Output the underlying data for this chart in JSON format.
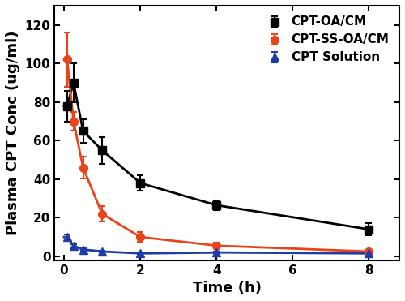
{
  "series": [
    {
      "label": "CPT-OA/CM",
      "color": "#000000",
      "marker": "s",
      "x": [
        0.083,
        0.25,
        0.5,
        1.0,
        2.0,
        4.0,
        8.0
      ],
      "y": [
        78.0,
        90.0,
        65.0,
        55.0,
        38.0,
        26.5,
        14.0
      ],
      "yerr": [
        8.0,
        10.0,
        6.0,
        7.0,
        4.0,
        2.5,
        3.0
      ]
    },
    {
      "label": "CPT-SS-OA/CM",
      "color": "#E8431A",
      "marker": "o",
      "x": [
        0.083,
        0.25,
        0.5,
        1.0,
        2.0,
        4.0,
        8.0
      ],
      "y": [
        102.0,
        70.0,
        46.0,
        22.0,
        10.0,
        5.5,
        2.5
      ],
      "yerr": [
        14.0,
        5.0,
        5.5,
        4.0,
        2.5,
        1.5,
        1.0
      ]
    },
    {
      "label": "CPT Solution",
      "color": "#1F3BA6",
      "marker": "^",
      "x": [
        0.083,
        0.25,
        0.5,
        1.0,
        2.0,
        4.0,
        8.0
      ],
      "y": [
        10.0,
        5.5,
        3.5,
        2.5,
        1.5,
        2.0,
        1.5
      ],
      "yerr": [
        1.5,
        0.8,
        0.5,
        0.4,
        0.3,
        0.4,
        0.3
      ]
    }
  ],
  "xlabel": "Time (h)",
  "ylabel": "Plasma CPT Conc (ug/ml)",
  "xlim": [
    -0.25,
    8.8
  ],
  "ylim": [
    -2,
    130
  ],
  "xticks": [
    0,
    2,
    4,
    6,
    8
  ],
  "yticks": [
    0,
    20,
    40,
    60,
    80,
    100,
    120
  ],
  "legend_loc": "upper right",
  "figsize": [
    5.0,
    3.71
  ],
  "dpi": 100,
  "spine_linewidth": 1.5,
  "tick_labelsize": 11,
  "axis_labelsize": 13,
  "legend_fontsize": 10,
  "markersize": 7,
  "linewidth": 2.0,
  "capsize": 3
}
